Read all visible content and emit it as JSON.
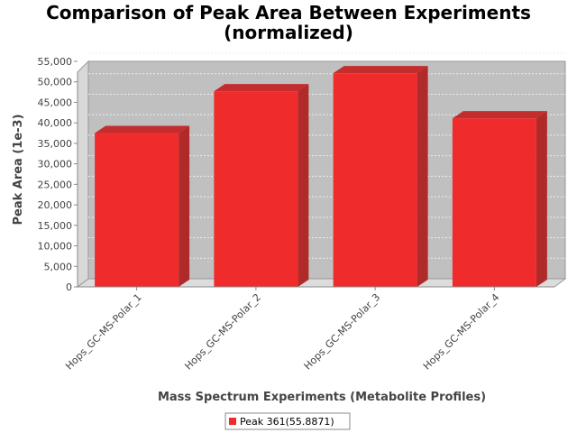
{
  "chart_data": {
    "type": "bar",
    "title_line1": "Comparison of Peak Area Between Experiments",
    "title_line2": "(normalized)",
    "xlabel": "Mass Spectrum Experiments (Metabolite Profiles)",
    "ylabel": "Peak Area (1e-3)",
    "categories": [
      "Hops_GC-MS-Polar_1",
      "Hops_GC-MS-Polar_2",
      "Hops_GC-MS-Polar_3",
      "Hops_GC-MS-Polar_4"
    ],
    "series": [
      {
        "name": "Peak 361(55.8871)",
        "values": [
          37500,
          47700,
          52100,
          41100
        ],
        "color": "#ef2b2b"
      }
    ],
    "ylim": [
      0,
      55000
    ],
    "yticks": [
      0,
      5000,
      10000,
      15000,
      20000,
      25000,
      30000,
      35000,
      40000,
      45000,
      50000,
      55000
    ],
    "ytick_labels": [
      "0",
      "5,000",
      "10,000",
      "15,000",
      "20,000",
      "25,000",
      "30,000",
      "35,000",
      "40,000",
      "45,000",
      "50,000",
      "55,000"
    ],
    "grid": true,
    "three_d": true,
    "plot_background": "#c0c0c0",
    "legend_position": "bottom"
  }
}
